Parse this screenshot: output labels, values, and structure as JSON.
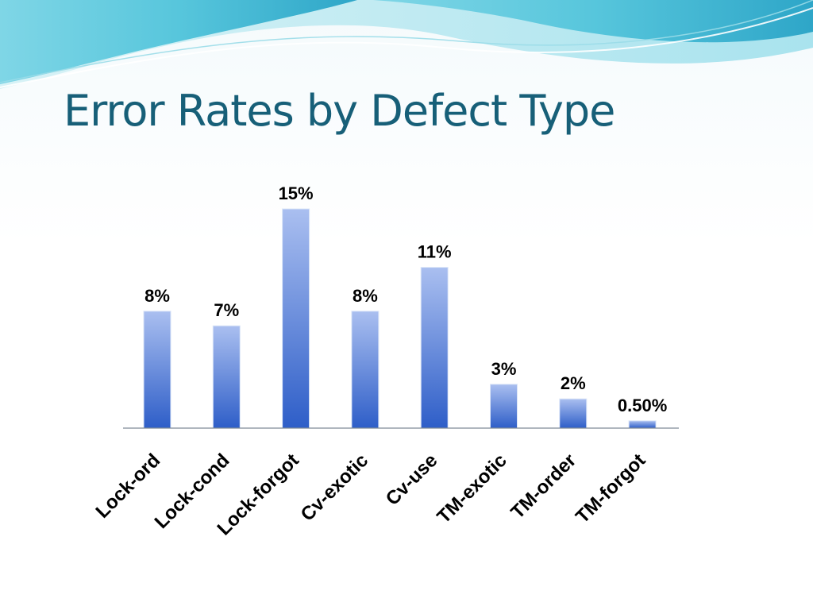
{
  "slide": {
    "title": "Error Rates by Defect Type"
  },
  "colors": {
    "title": "#175f78",
    "bar_top": "#aabff0",
    "bar_bottom": "#2e5ec8",
    "axis": "#7f8a96",
    "banner_light": "#c8ecf2",
    "banner_mid": "#6fd0e0",
    "banner_dark": "#2ea6c8"
  },
  "chart_data": {
    "type": "bar",
    "title": "",
    "xlabel": "",
    "ylabel": "",
    "categories": [
      "Lock-ord",
      "Lock-cond",
      "Lock-forgot",
      "Cv-exotic",
      "Cv-use",
      "TM-exotic",
      "TM-order",
      "TM-forgot"
    ],
    "values": [
      8,
      7,
      15,
      8,
      11,
      3,
      2,
      0.5
    ],
    "value_labels": [
      "8%",
      "7%",
      "15%",
      "8%",
      "11%",
      "3%",
      "2%",
      "0.50%"
    ],
    "ylim": [
      0,
      15
    ],
    "grid": false,
    "legend": "none",
    "unit": "%"
  }
}
